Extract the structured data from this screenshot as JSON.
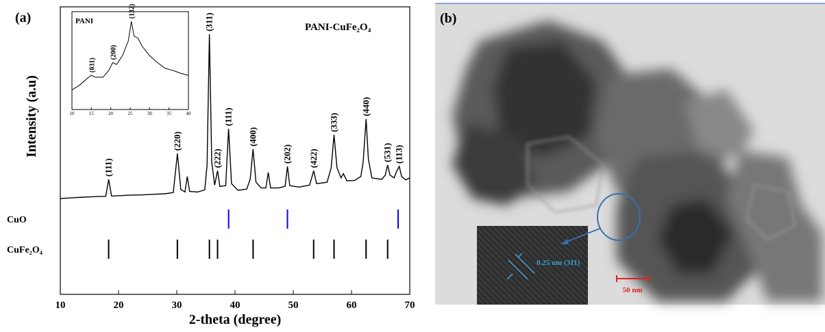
{
  "chart_data": [
    {
      "type": "line",
      "panel_label": "(a)",
      "title": "PANI-CuFe₂O₄",
      "x_label": "2-theta (degree)",
      "y_label": "Intensity (a.u)",
      "xlim": [
        10,
        70
      ],
      "xticks": [
        10,
        20,
        30,
        40,
        50,
        60,
        70
      ],
      "ylim": [
        0,
        100
      ],
      "color": "#000000",
      "x": [
        10,
        12,
        14,
        16,
        17.8,
        18.3,
        18.8,
        20,
        22,
        24,
        26,
        28,
        29.4,
        30.1,
        30.7,
        31.4,
        31.8,
        32.2,
        33.5,
        34.8,
        35.2,
        35.6,
        36.0,
        36.5,
        37.0,
        37.4,
        38.4,
        38.9,
        39.4,
        40.5,
        42.0,
        42.6,
        43.1,
        43.6,
        44.5,
        45.3,
        45.7,
        46.1,
        47.5,
        48.6,
        49.0,
        49.4,
        51,
        52.8,
        53.5,
        54.0,
        55.8,
        56.5,
        57.0,
        57.5,
        58.2,
        58.6,
        59.2,
        60.5,
        61.6,
        62.0,
        62.5,
        62.9,
        63.5,
        65.2,
        65.8,
        66.2,
        66.6,
        67.3,
        67.8,
        68.2,
        68.6,
        69.3,
        70
      ],
      "values": [
        33.3,
        33.6,
        33.8,
        34,
        34.1,
        40,
        34.2,
        34.3,
        34.5,
        34.6,
        34.8,
        35,
        35.4,
        49,
        36.5,
        35.6,
        41,
        35.8,
        35.6,
        36.3,
        45,
        90.5,
        46,
        38,
        43,
        37.5,
        37.8,
        57.6,
        38.5,
        36.2,
        36.6,
        40,
        50.5,
        39,
        37,
        37,
        42.4,
        37,
        37,
        37.6,
        44.5,
        37.8,
        37.3,
        38,
        43,
        38.5,
        39,
        44,
        55.5,
        44,
        40.5,
        42,
        39.5,
        39.6,
        41,
        46,
        61,
        47,
        40.5,
        40,
        41.5,
        45,
        41.5,
        40.5,
        43,
        44.5,
        41,
        39.8,
        40.5
      ],
      "peak_labels": [
        {
          "label": "(111)",
          "x": 18.3
        },
        {
          "label": "(220)",
          "x": 30.1
        },
        {
          "label": "(311)",
          "x": 35.6
        },
        {
          "label": "(222)",
          "x": 37.0
        },
        {
          "label": "(111)",
          "x": 38.9
        },
        {
          "label": "(400)",
          "x": 43.1
        },
        {
          "label": "(202)",
          "x": 49.0
        },
        {
          "label": "(422)",
          "x": 53.5
        },
        {
          "label": "(333)",
          "x": 57.0
        },
        {
          "label": "(440)",
          "x": 62.5
        },
        {
          "label": "(531)",
          "x": 66.2
        },
        {
          "label": "(113)",
          "x": 68.2
        }
      ],
      "reference_patterns": [
        {
          "name": "CuO",
          "color": "#0000ff",
          "positions": [
            38.9,
            49.0,
            68.0
          ]
        },
        {
          "name": "CuFe₂O₄",
          "color": "#000000",
          "positions": [
            18.3,
            30.1,
            35.6,
            37.0,
            43.1,
            53.5,
            57.0,
            62.5,
            66.2
          ]
        }
      ]
    },
    {
      "type": "line",
      "title": "PANI",
      "xlim": [
        10,
        40
      ],
      "xticks": [
        10,
        15,
        20,
        25,
        30,
        35,
        40
      ],
      "ylim": [
        0,
        100
      ],
      "color": "#000000",
      "x": [
        10,
        12,
        14,
        15,
        16,
        18,
        19.5,
        20.5,
        21.5,
        23,
        24.5,
        25.3,
        26,
        27,
        28,
        30,
        32,
        34,
        36,
        38,
        40
      ],
      "values": [
        20,
        25,
        32,
        35,
        33,
        33,
        40,
        48,
        46,
        55,
        70,
        90,
        75,
        73,
        65,
        55,
        48,
        42,
        40,
        37,
        35
      ],
      "peak_labels": [
        {
          "label": "(031)",
          "x": 15
        },
        {
          "label": "(200)",
          "x": 20.5
        },
        {
          "label": "(132)",
          "x": 25.3
        }
      ]
    }
  ],
  "image_panel": {
    "label": "(b)",
    "annotation": "0.25 nm (311)",
    "scale_bar": "50 nm"
  }
}
